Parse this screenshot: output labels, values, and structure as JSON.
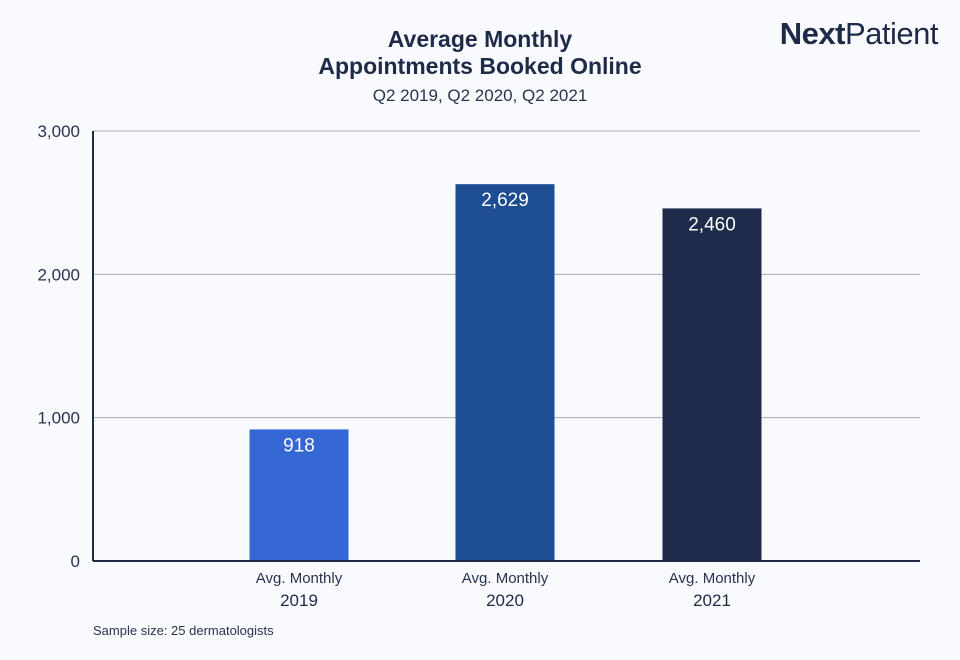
{
  "header": {
    "title_line1": "Average Monthly",
    "title_line2": "Appointments Booked Online",
    "subtitle": "Q2 2019, Q2 2020, Q2 2021"
  },
  "logo": {
    "part1": "Next",
    "part2": "Patient"
  },
  "footnote": "Sample size: 25 dermatologists",
  "chart_data": {
    "type": "bar",
    "categories": [
      {
        "line1": "Avg. Monthly",
        "line2": "2019"
      },
      {
        "line1": "Avg. Monthly",
        "line2": "2020"
      },
      {
        "line1": "Avg. Monthly",
        "line2": "2021"
      }
    ],
    "values": [
      918,
      2629,
      2460
    ],
    "data_labels": [
      "918",
      "2,629",
      "2,460"
    ],
    "bar_colors": [
      "#3567d4",
      "#1d4d93",
      "#1f2b4a"
    ],
    "y_ticks": [
      {
        "value": 0,
        "label": "0"
      },
      {
        "value": 1000,
        "label": "1,000"
      },
      {
        "value": 2000,
        "label": "2,000"
      },
      {
        "value": 3000,
        "label": "3,000"
      }
    ],
    "ylim": [
      0,
      3000
    ],
    "grid": true,
    "legend": "none"
  }
}
